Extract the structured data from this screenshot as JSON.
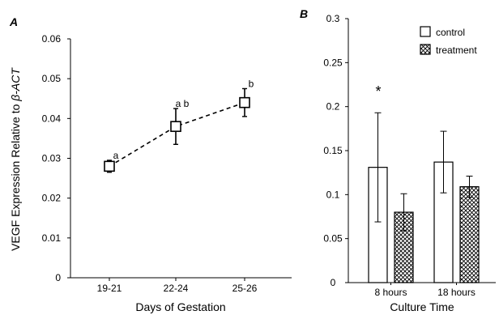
{
  "chart_data": [
    {
      "panel_label": "A",
      "type": "line",
      "categories": [
        "19-21",
        "22-24",
        "25-26"
      ],
      "series": [
        {
          "values": [
            0.028,
            0.038,
            0.044
          ],
          "error": [
            0.0015,
            0.0045,
            0.0035
          ]
        }
      ],
      "point_labels": [
        "a",
        "a b",
        "b"
      ],
      "xlabel": "Days of Gestation",
      "ylabel": "VEGF Expression Relative to β-ACT",
      "ylabel_main": "VEGF Expression Relative to ",
      "ylabel_italic": "β-ACT",
      "ylim": [
        0,
        0.06
      ],
      "yticks": [
        "0",
        "0.01",
        "0.02",
        "0.03",
        "0.04",
        "0.05",
        "0.06"
      ],
      "line_style": "dashed",
      "marker": "open-square",
      "grid": false
    },
    {
      "panel_label": "B",
      "type": "bar",
      "categories": [
        "8 hours",
        "18 hours"
      ],
      "series": [
        {
          "name": "control",
          "values": [
            0.131,
            0.137
          ],
          "error": [
            0.062,
            0.035
          ],
          "fill": "#ffffff"
        },
        {
          "name": "treatment",
          "values": [
            0.08,
            0.109
          ],
          "error": [
            0.021,
            0.012
          ],
          "fill": "crosshatch"
        }
      ],
      "annotations": [
        "*"
      ],
      "xlabel": "Culture Time",
      "ylabel": "",
      "ylim": [
        0,
        0.3
      ],
      "yticks": [
        "0",
        "0.05",
        "0.1",
        "0.15",
        "0.2",
        "0.25",
        "0.3"
      ],
      "legend_position": "top-right",
      "grid": false
    }
  ],
  "colors": {
    "axis": "#000000",
    "bar_outline": "#000000",
    "hatch": "#000000"
  }
}
